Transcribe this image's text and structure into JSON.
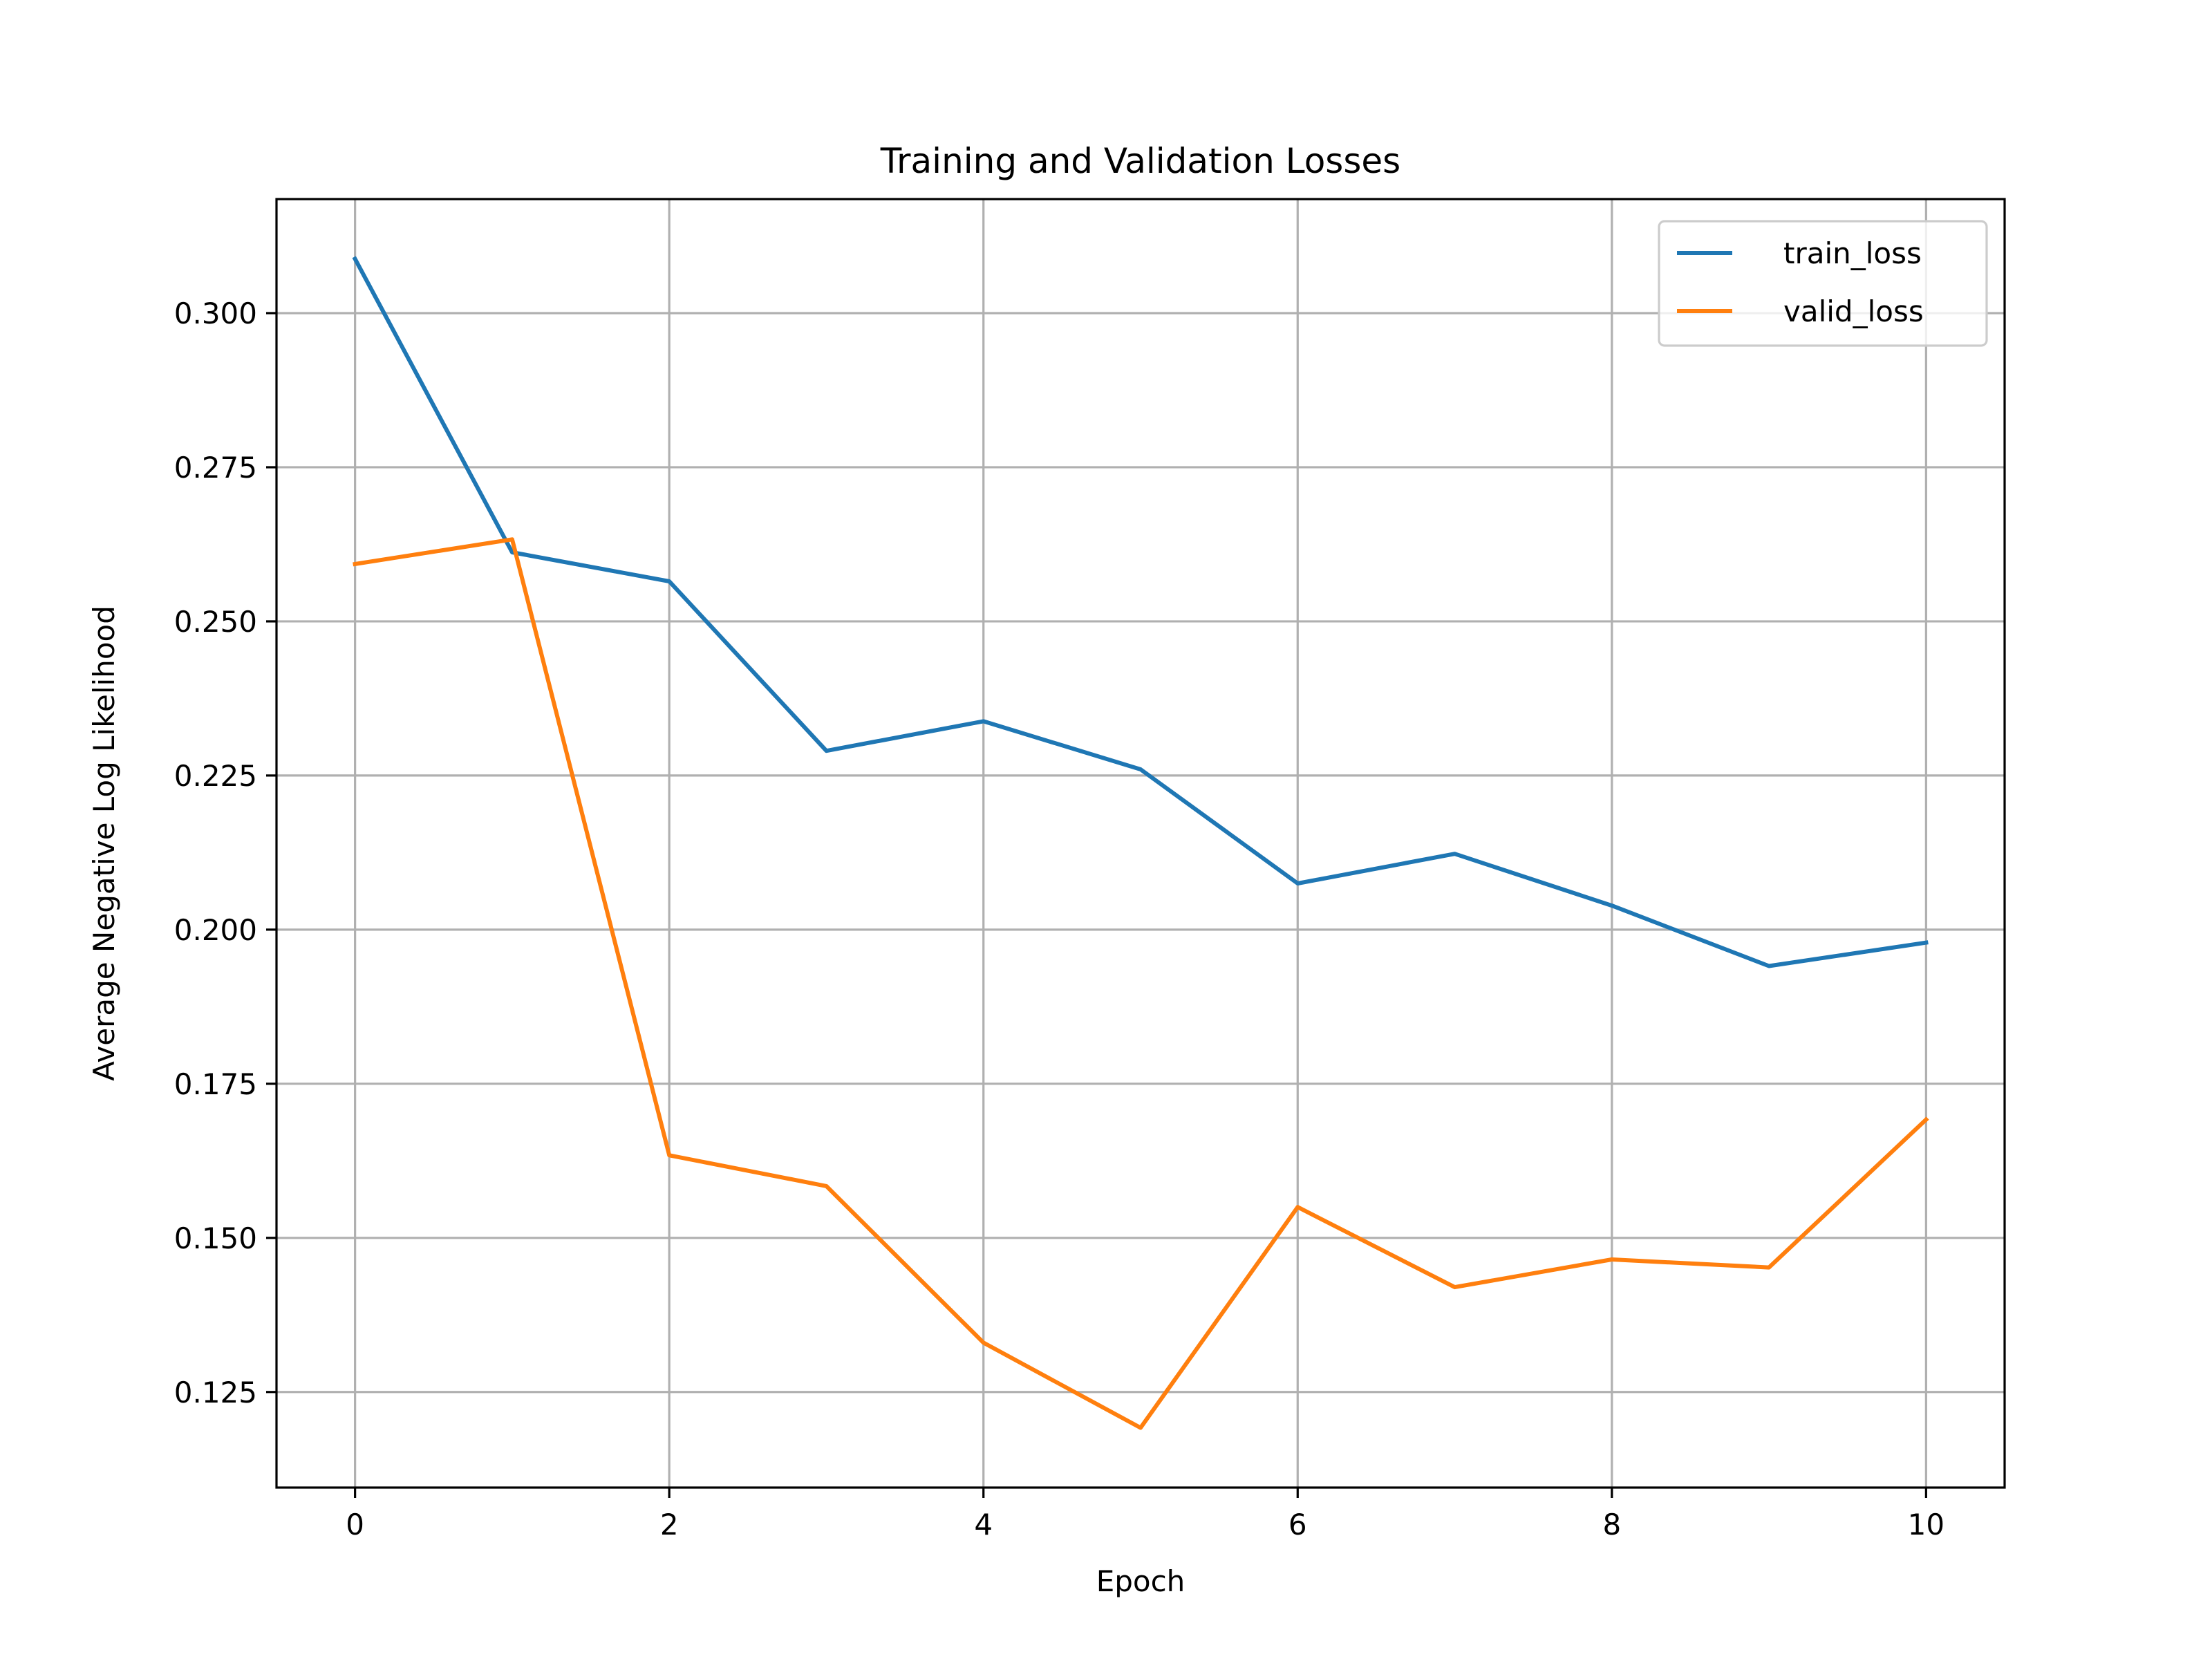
{
  "chart_data": {
    "type": "line",
    "title": "Training and Validation Losses",
    "xlabel": "Epoch",
    "ylabel": "Average Negative Log Likelihood",
    "x": [
      0,
      1,
      2,
      3,
      4,
      5,
      6,
      7,
      8,
      9,
      10
    ],
    "xlim": [
      -0.5,
      10.5
    ],
    "ylim": [
      0.1095,
      0.3185
    ],
    "xticks": [
      0,
      2,
      4,
      6,
      8,
      10
    ],
    "xtick_labels": [
      "0",
      "2",
      "4",
      "6",
      "8",
      "10"
    ],
    "yticks": [
      0.125,
      0.15,
      0.175,
      0.2,
      0.225,
      0.25,
      0.275,
      0.3
    ],
    "ytick_labels": [
      "0.125",
      "0.150",
      "0.175",
      "0.200",
      "0.225",
      "0.250",
      "0.275",
      "0.300"
    ],
    "grid": true,
    "legend_position": "top-right",
    "series": [
      {
        "name": "train_loss",
        "color": "#1f77b4",
        "values": [
          0.3088,
          0.2612,
          0.2565,
          0.229,
          0.2338,
          0.226,
          0.2075,
          0.2123,
          0.2039,
          0.1941,
          0.1979
        ]
      },
      {
        "name": "valid_loss",
        "color": "#ff7f0e",
        "values": [
          0.2593,
          0.2633,
          0.1634,
          0.1584,
          0.133,
          0.1192,
          0.155,
          0.142,
          0.1465,
          0.1452,
          0.1692
        ]
      }
    ]
  }
}
